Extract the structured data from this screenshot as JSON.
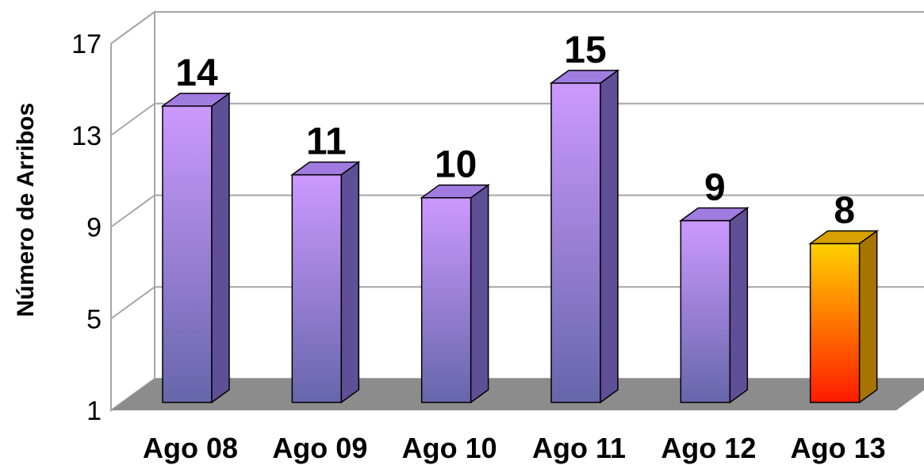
{
  "chart_data": {
    "type": "bar",
    "title": "",
    "xlabel": "",
    "ylabel": "Número de Arribos",
    "categories": [
      "Ago 08",
      "Ago 09",
      "Ago 10",
      "Ago 11",
      "Ago 12",
      "Ago 13"
    ],
    "values": [
      14,
      11,
      10,
      15,
      9,
      8
    ],
    "data_labels": [
      "14",
      "11",
      "10",
      "15",
      "9",
      "8"
    ],
    "ylim": [
      1,
      17
    ],
    "yticks": [
      1,
      5,
      9,
      13,
      17
    ],
    "ytick_labels": [
      "1",
      "5",
      "9",
      "13",
      "17"
    ],
    "grid": true,
    "legend": "none",
    "style": "3d",
    "colors": {
      "bar_top": "#cc99ff",
      "bar_bottom": "#6666aa",
      "bar_side": "#5f4f96",
      "bar_cap": "#a07ce0",
      "highlight_top": "#ffd000",
      "highlight_bottom": "#ff1a00",
      "highlight_side": "#a87400",
      "highlight_cap": "#d8a000",
      "floor": "#8c8c8c",
      "wall": "#ffffff",
      "grid": "#a6a6a6"
    },
    "highlight_index": 5
  }
}
